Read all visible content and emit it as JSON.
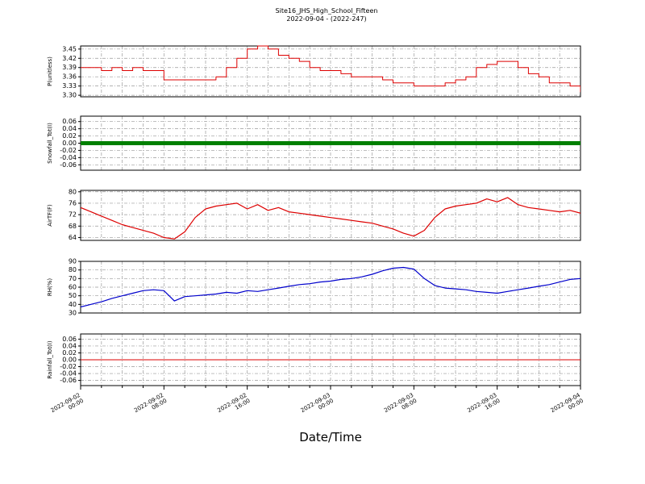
{
  "title": {
    "line1": "Site16_JHS_High_School_Fifteen",
    "line2": "2022-09-04 - (2022-247)"
  },
  "xlabel": "Date/Time",
  "x_ticks": [
    "2022-09-02 00:00",
    "2022-09-02 08:00",
    "2022-09-02 16:00",
    "2022-09-03 00:00",
    "2022-09-03 08:00",
    "2022-09-03 16:00",
    "2022-09-04 00:00"
  ],
  "x_hours": [
    0,
    1,
    2,
    3,
    4,
    5,
    6,
    7,
    8,
    9,
    10,
    11,
    12,
    13,
    14,
    15,
    16,
    17,
    18,
    19,
    20,
    21,
    22,
    23,
    24,
    25,
    26,
    27,
    28,
    29,
    30,
    31,
    32,
    33,
    34,
    35,
    36,
    37,
    38,
    39,
    40,
    41,
    42,
    43,
    44,
    45,
    46,
    47,
    48
  ],
  "chart_data": [
    {
      "name": "P",
      "type": "line",
      "ylabel": "P(unitless)",
      "color": "#dd0000",
      "line_width": 1,
      "step": true,
      "ylim": [
        3.295,
        3.46
      ],
      "yticks": [
        "3.30",
        "3.33",
        "3.36",
        "3.39",
        "3.42",
        "3.45"
      ],
      "values": [
        3.39,
        3.39,
        3.38,
        3.39,
        3.38,
        3.39,
        3.38,
        3.38,
        3.35,
        3.35,
        3.35,
        3.35,
        3.35,
        3.36,
        3.39,
        3.42,
        3.45,
        3.46,
        3.45,
        3.43,
        3.42,
        3.41,
        3.39,
        3.38,
        3.38,
        3.37,
        3.36,
        3.36,
        3.36,
        3.35,
        3.34,
        3.34,
        3.33,
        3.33,
        3.33,
        3.34,
        3.35,
        3.36,
        3.39,
        3.4,
        3.41,
        3.41,
        3.39,
        3.37,
        3.36,
        3.34,
        3.34,
        3.33,
        3.31
      ]
    },
    {
      "name": "Snowfall",
      "type": "line",
      "ylabel": "Snowfall_Tot(I)",
      "color": "#008000",
      "line_width": 5,
      "step": false,
      "ylim": [
        -0.075,
        0.075
      ],
      "yticks": [
        "-0.06",
        "-0.04",
        "-0.02",
        "0.00",
        "0.02",
        "0.04",
        "0.06"
      ],
      "values": [
        0,
        0,
        0,
        0,
        0,
        0,
        0,
        0,
        0,
        0,
        0,
        0,
        0,
        0,
        0,
        0,
        0,
        0,
        0,
        0,
        0,
        0,
        0,
        0,
        0,
        0,
        0,
        0,
        0,
        0,
        0,
        0,
        0,
        0,
        0,
        0,
        0,
        0,
        0,
        0,
        0,
        0,
        0,
        0,
        0,
        0,
        0,
        0,
        0
      ]
    },
    {
      "name": "AirTF",
      "type": "line",
      "ylabel": "AirTF(F)",
      "color": "#dd0000",
      "line_width": 1.2,
      "step": false,
      "ylim": [
        63,
        80.5
      ],
      "yticks": [
        "64",
        "68",
        "72",
        "76",
        "80"
      ],
      "values": [
        74.5,
        73.0,
        71.5,
        70.0,
        68.5,
        67.5,
        66.5,
        65.5,
        64.0,
        63.5,
        66.0,
        71.0,
        74.0,
        75.0,
        75.5,
        76.0,
        74.0,
        75.5,
        73.5,
        74.5,
        73.0,
        72.5,
        72.0,
        71.5,
        71.0,
        70.5,
        70.0,
        69.5,
        69.0,
        68.0,
        67.0,
        65.5,
        64.5,
        66.5,
        71.0,
        74.0,
        75.0,
        75.5,
        76.0,
        77.5,
        76.5,
        78.0,
        75.5,
        74.5,
        74.0,
        73.5,
        73.0,
        73.5,
        72.5
      ]
    },
    {
      "name": "RH",
      "type": "line",
      "ylabel": "RH(%)",
      "color": "#0000cc",
      "line_width": 1.2,
      "step": false,
      "ylim": [
        30,
        90
      ],
      "yticks": [
        "30",
        "40",
        "50",
        "60",
        "70",
        "80",
        "90"
      ],
      "values": [
        37,
        40,
        43,
        47,
        50,
        53,
        56,
        57,
        56,
        44,
        49,
        50,
        51,
        52,
        54,
        53,
        56,
        55,
        57,
        59,
        61,
        63,
        64,
        66,
        67,
        69,
        70,
        72,
        75,
        79,
        82,
        83,
        81,
        70,
        62,
        59,
        58,
        57,
        55,
        54,
        53,
        55,
        57,
        59,
        61,
        63,
        66,
        69,
        70
      ]
    },
    {
      "name": "Rainfall",
      "type": "line",
      "ylabel": "Rainfall_Tot(I)",
      "color": "#dd0000",
      "line_width": 1,
      "step": false,
      "ylim": [
        -0.075,
        0.075
      ],
      "yticks": [
        "-0.06",
        "-0.04",
        "-0.02",
        "0.00",
        "0.02",
        "0.04",
        "0.06"
      ],
      "values": [
        0,
        0,
        0,
        0,
        0,
        0,
        0,
        0,
        0,
        0,
        0,
        0,
        0,
        0,
        0,
        0,
        0,
        0,
        0,
        0,
        0,
        0,
        0,
        0,
        0,
        0,
        0,
        0,
        0,
        0,
        0,
        0,
        0,
        0,
        0,
        0,
        0,
        0,
        0,
        0,
        0,
        0,
        0,
        0,
        0,
        0,
        0,
        0,
        0
      ]
    }
  ]
}
